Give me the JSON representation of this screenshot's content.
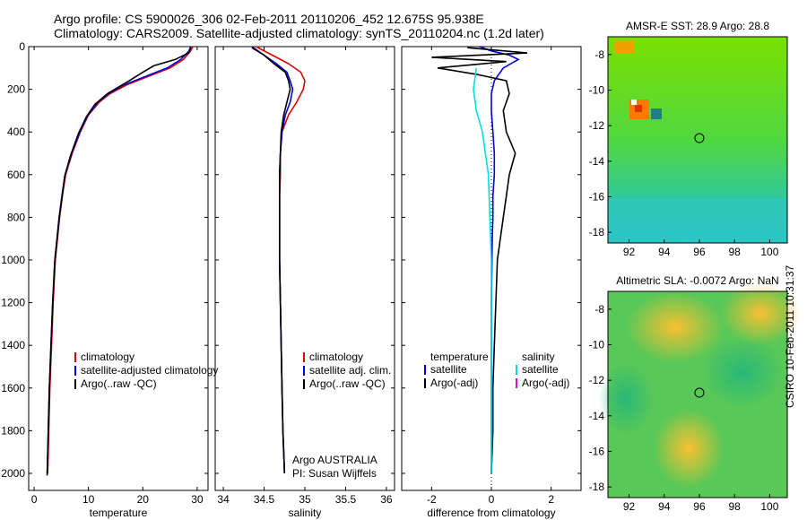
{
  "header": {
    "line1": "Argo profile: CS 5900026_306 02-Feb-2011 20110206_452 12.675S 95.938E",
    "line2": "Climatology: CARS2009. Satellite-adjusted climatology: synTS_20110204.nc (1.2d later)"
  },
  "side_label": "CSIRO 10-Feb-2011 10:31:37",
  "colors": {
    "red": "#e00000",
    "blue": "#0000e0",
    "black": "#000000",
    "cyan": "#00e0e0",
    "magenta": "#e000e0"
  },
  "chart_data": [
    {
      "type": "line",
      "name": "temperature-profile",
      "xlabel": "temperature",
      "xlim": [
        -1,
        32
      ],
      "ylim": [
        2080,
        0
      ],
      "xticks": [
        0,
        10,
        20,
        30
      ],
      "yticks": [
        0,
        200,
        400,
        600,
        800,
        1000,
        1200,
        1400,
        1600,
        1800,
        2000
      ],
      "legend": [
        "climatology",
        "satellite-adjusted climatology",
        "Argo(..raw -QC)"
      ],
      "series": [
        {
          "name": "climatology",
          "color": "red",
          "x": [
            29.2,
            28.8,
            27.5,
            25,
            21,
            17,
            14,
            12,
            10,
            8.5,
            7,
            5.8,
            5.2,
            4.7,
            4.3,
            3.9,
            3.5,
            3.2,
            2.9,
            2.7,
            2.5
          ],
          "y": [
            0,
            20,
            60,
            100,
            140,
            180,
            220,
            260,
            320,
            400,
            500,
            600,
            700,
            800,
            900,
            1000,
            1200,
            1400,
            1600,
            1800,
            2000
          ]
        },
        {
          "name": "satellite-adjusted climatology",
          "color": "blue",
          "x": [
            28.8,
            28.5,
            27,
            24.5,
            20.5,
            16.5,
            13.7,
            11.8,
            9.9,
            8.4,
            6.9,
            5.7,
            5.1,
            4.6,
            4.2,
            3.8,
            3.4,
            3.1,
            2.8,
            2.6,
            2.4
          ],
          "y": [
            0,
            20,
            60,
            100,
            140,
            180,
            220,
            260,
            320,
            400,
            500,
            600,
            700,
            800,
            900,
            1000,
            1200,
            1400,
            1600,
            1800,
            2000
          ]
        },
        {
          "name": "Argo(..raw -QC)",
          "color": "black",
          "x": [
            28.9,
            28.4,
            26,
            22,
            20,
            17.5,
            13.5,
            11.2,
            9.6,
            8.1,
            6.7,
            5.6,
            5.1,
            4.6,
            4.2,
            3.8,
            3.4,
            3.1,
            2.8,
            2.6,
            2.4
          ],
          "y": [
            5,
            30,
            60,
            90,
            120,
            160,
            220,
            270,
            330,
            410,
            510,
            610,
            710,
            810,
            910,
            1010,
            1210,
            1410,
            1610,
            1810,
            2010
          ]
        }
      ]
    },
    {
      "type": "line",
      "name": "salinity-profile",
      "xlabel": "salinity",
      "xlim": [
        33.9,
        36.1
      ],
      "ylim": [
        2080,
        0
      ],
      "xticks": [
        34,
        34.5,
        35,
        35.5,
        36
      ],
      "xticklabels": [
        "34",
        "34.5",
        "35",
        "35.5",
        "36"
      ],
      "legend": [
        "climatology",
        "satellite adj. clim.",
        "Argo(..raw -QC)"
      ],
      "annotation": [
        "Argo AUSTRALIA",
        "PI: Susan Wijffels"
      ],
      "series": [
        {
          "name": "climatology",
          "color": "red",
          "x": [
            34.4,
            34.6,
            34.8,
            34.95,
            35.0,
            34.98,
            34.9,
            34.8,
            34.72,
            34.7,
            34.7,
            34.69,
            34.69,
            34.69,
            34.69,
            34.7,
            34.71,
            34.72,
            34.73,
            34.74,
            34.75
          ],
          "y": [
            0,
            40,
            80,
            120,
            160,
            200,
            260,
            320,
            400,
            500,
            600,
            700,
            800,
            900,
            1000,
            1200,
            1400,
            1600,
            1800,
            1900,
            2000
          ]
        },
        {
          "name": "satellite adj. clim.",
          "color": "blue",
          "x": [
            34.35,
            34.5,
            34.65,
            34.78,
            34.82,
            34.85,
            34.82,
            34.76,
            34.72,
            34.7,
            34.69,
            34.69,
            34.69,
            34.69,
            34.69,
            34.7,
            34.71,
            34.72,
            34.73,
            34.74,
            34.75
          ],
          "y": [
            0,
            40,
            80,
            120,
            160,
            200,
            260,
            320,
            400,
            500,
            600,
            700,
            800,
            900,
            1000,
            1200,
            1400,
            1600,
            1800,
            1900,
            2000
          ]
        },
        {
          "name": "Argo(..raw -QC)",
          "color": "black",
          "x": [
            34.35,
            34.5,
            34.62,
            34.76,
            34.8,
            34.82,
            34.78,
            34.74,
            34.71,
            34.7,
            34.69,
            34.69,
            34.69,
            34.69,
            34.69,
            34.7,
            34.71,
            34.72,
            34.73,
            34.74,
            34.75
          ],
          "y": [
            5,
            40,
            80,
            120,
            160,
            200,
            260,
            320,
            400,
            500,
            600,
            700,
            800,
            900,
            1000,
            1200,
            1400,
            1600,
            1800,
            1900,
            2000
          ]
        }
      ]
    },
    {
      "type": "line",
      "name": "difference-profile",
      "xlabel": "difference from climatology",
      "xlim": [
        -3,
        3
      ],
      "ylim": [
        2080,
        0
      ],
      "xticks": [
        -2,
        0,
        2
      ],
      "legend_left_title": "temperature",
      "legend_left": [
        "satellite",
        "Argo(-adj)"
      ],
      "legend_right_title": "salinity",
      "legend_right": [
        "satellite",
        "Argo(-adj)"
      ],
      "series": [
        {
          "name": "temperature satellite",
          "color": "blue",
          "x": [
            -0.4,
            0,
            0.6,
            0.9,
            0.4,
            0.1,
            0,
            0,
            0.05,
            0.1,
            0.1,
            0.05,
            0.05,
            0.03,
            0.02,
            0,
            0,
            0,
            0,
            0,
            0
          ],
          "y": [
            0,
            20,
            40,
            60,
            100,
            160,
            220,
            300,
            400,
            500,
            600,
            700,
            800,
            900,
            1000,
            1200,
            1400,
            1600,
            1800,
            1900,
            2000
          ]
        },
        {
          "name": "temperature Argo(-adj)",
          "color": "black",
          "x": [
            -0.8,
            1.2,
            -2,
            0.5,
            -1.8,
            -0.5,
            0.5,
            0.6,
            0.4,
            0.5,
            0.8,
            0.6,
            0.5,
            0.4,
            0.3,
            0.2,
            0.15,
            0.1,
            0.05,
            0.05,
            0
          ],
          "y": [
            5,
            30,
            50,
            70,
            100,
            130,
            160,
            220,
            300,
            400,
            500,
            600,
            700,
            800,
            900,
            1000,
            1200,
            1400,
            1600,
            1800,
            2000
          ]
        },
        {
          "name": "salinity satellite",
          "color": "cyan",
          "x": [
            -0.5,
            -0.6,
            -0.5,
            -0.3,
            -0.2,
            -0.1,
            -0.05,
            0,
            0,
            0,
            0,
            0
          ],
          "y": [
            100,
            200,
            300,
            400,
            500,
            600,
            800,
            1000,
            1200,
            1500,
            1800,
            2000
          ]
        }
      ]
    },
    {
      "type": "heatmap",
      "name": "sst-map",
      "title": "AMSR-E SST: 28.9 Argo: 28.8",
      "xlim": [
        90.8,
        101
      ],
      "ylim": [
        -18.6,
        -7
      ],
      "xticks": [
        92,
        94,
        96,
        98,
        100
      ],
      "yticks": [
        -8,
        -10,
        -12,
        -14,
        -16,
        -18
      ],
      "marker": {
        "x": 96,
        "y": -12.7
      }
    },
    {
      "type": "heatmap",
      "name": "sla-map",
      "title": "Altimetric SLA: -0.0072 Argo: NaN",
      "xlim": [
        90.8,
        101
      ],
      "ylim": [
        -18.6,
        -7
      ],
      "xticks": [
        92,
        94,
        96,
        98,
        100
      ],
      "yticks": [
        -8,
        -10,
        -12,
        -14,
        -16,
        -18
      ],
      "marker": {
        "x": 96,
        "y": -12.7
      }
    }
  ]
}
